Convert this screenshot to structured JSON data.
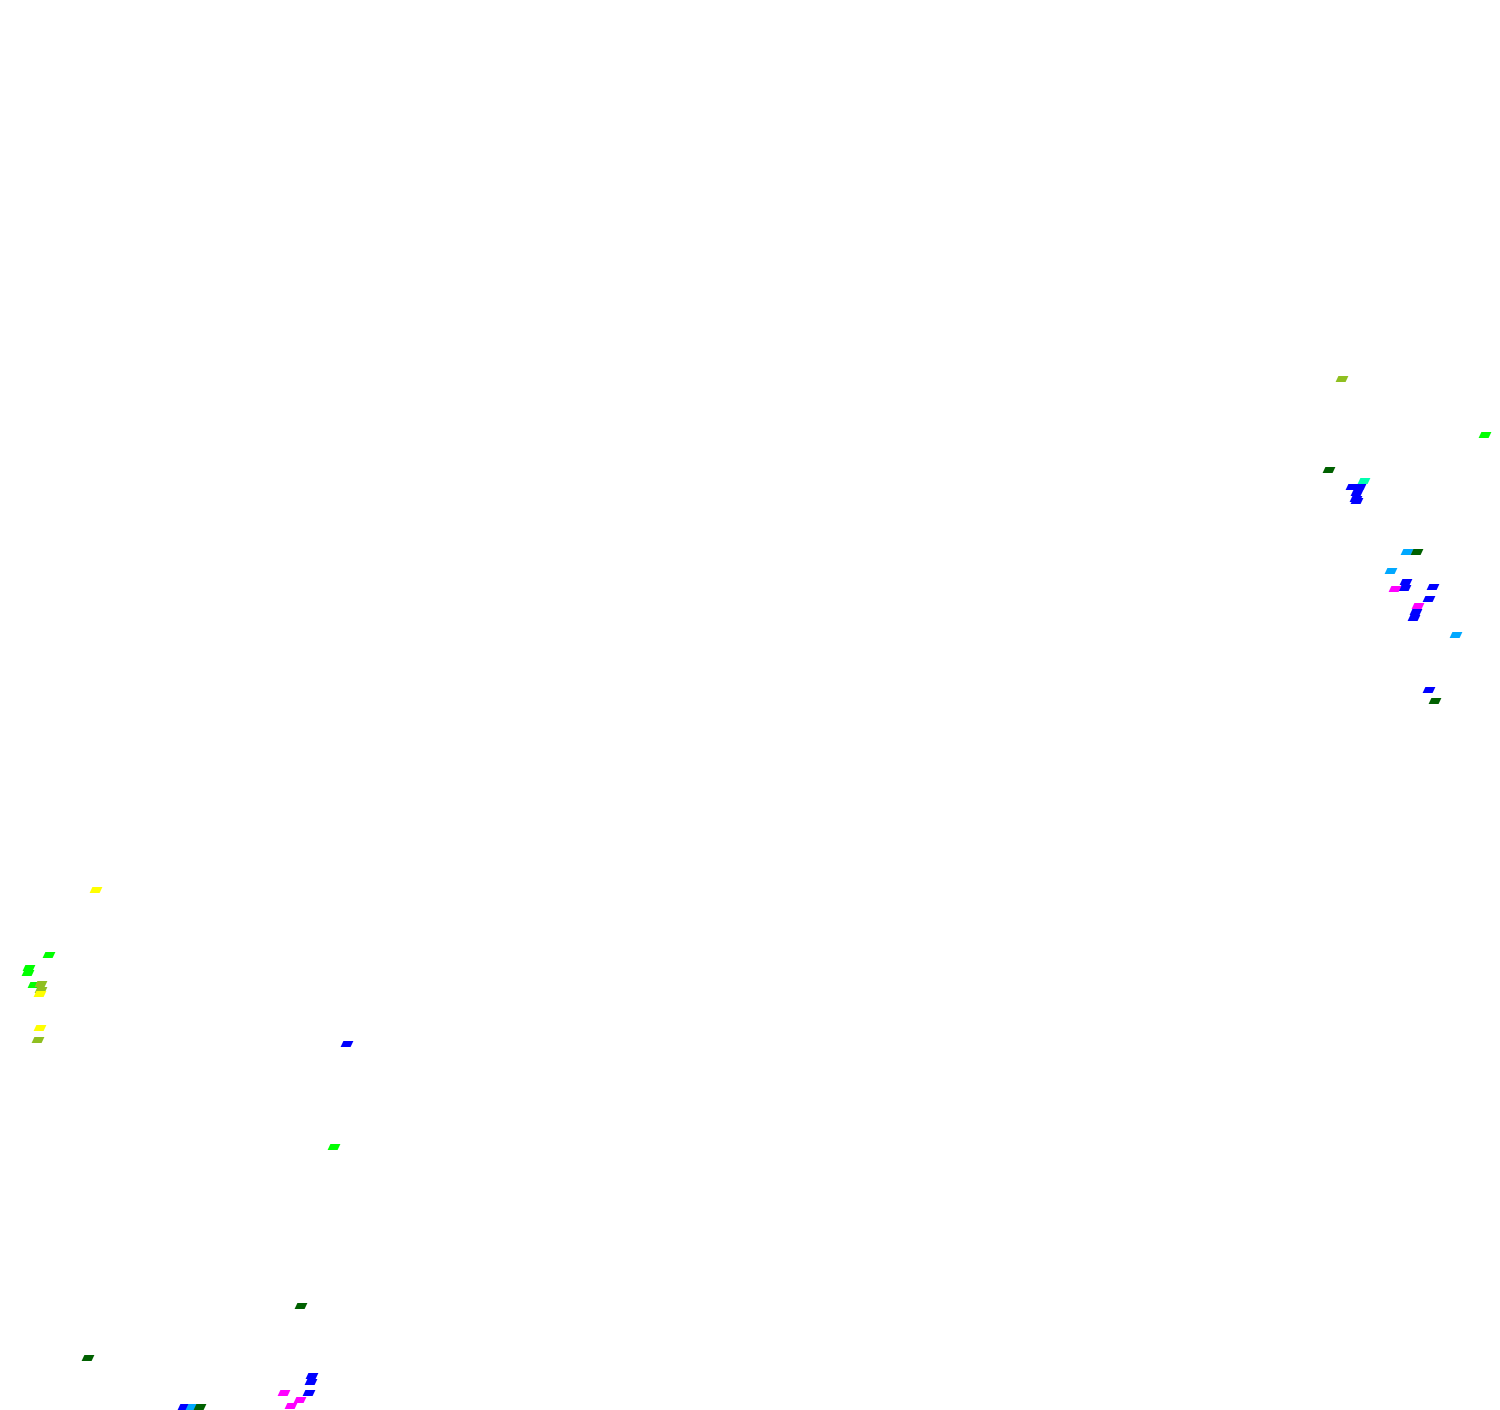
{
  "colors": {
    "olive": "#8fbf20",
    "lime": "#00ff00",
    "darkgreen": "#006000",
    "blue": "#0000ff",
    "teal": "#00ffb0",
    "skyblue": "#00a8ff",
    "magenta": "#ff00ff",
    "yellow": "#ffff00"
  }
}
